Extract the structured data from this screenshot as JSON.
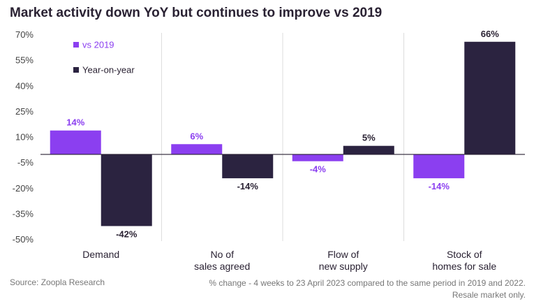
{
  "chart_data": {
    "type": "bar",
    "title": "Market activity down YoY but continues to improve vs 2019",
    "categories": [
      [
        "Demand"
      ],
      [
        "No of",
        "sales agreed"
      ],
      [
        "Flow of",
        "new supply"
      ],
      [
        "Stock of",
        "homes for sale"
      ]
    ],
    "series": [
      {
        "name": "vs 2019",
        "color": "#8b3ff0",
        "values": [
          14,
          6,
          -4,
          -14
        ],
        "labels": [
          "14%",
          "6%",
          "-4%",
          "-14%"
        ]
      },
      {
        "name": "Year-on-year",
        "color": "#2b2340",
        "values": [
          -42,
          -14,
          5,
          66
        ],
        "labels": [
          "-42%",
          "-14%",
          "5%",
          "66%"
        ]
      }
    ],
    "yticks": [
      70,
      55,
      40,
      25,
      10,
      -5,
      -20,
      -35,
      -50
    ],
    "ytick_labels": [
      "70%",
      "55%",
      "40%",
      "25%",
      "10%",
      "-5%",
      "-20%",
      "-35%",
      "-50%"
    ],
    "ylim": [
      -50,
      70
    ],
    "legend_position": "top-left",
    "grid": false,
    "source": "Source: Zoopla Research",
    "note_lines": [
      "% change - 4 weeks to 23 April 2023 compared to the same period in 2019 and 2022.",
      "Resale market only."
    ]
  }
}
